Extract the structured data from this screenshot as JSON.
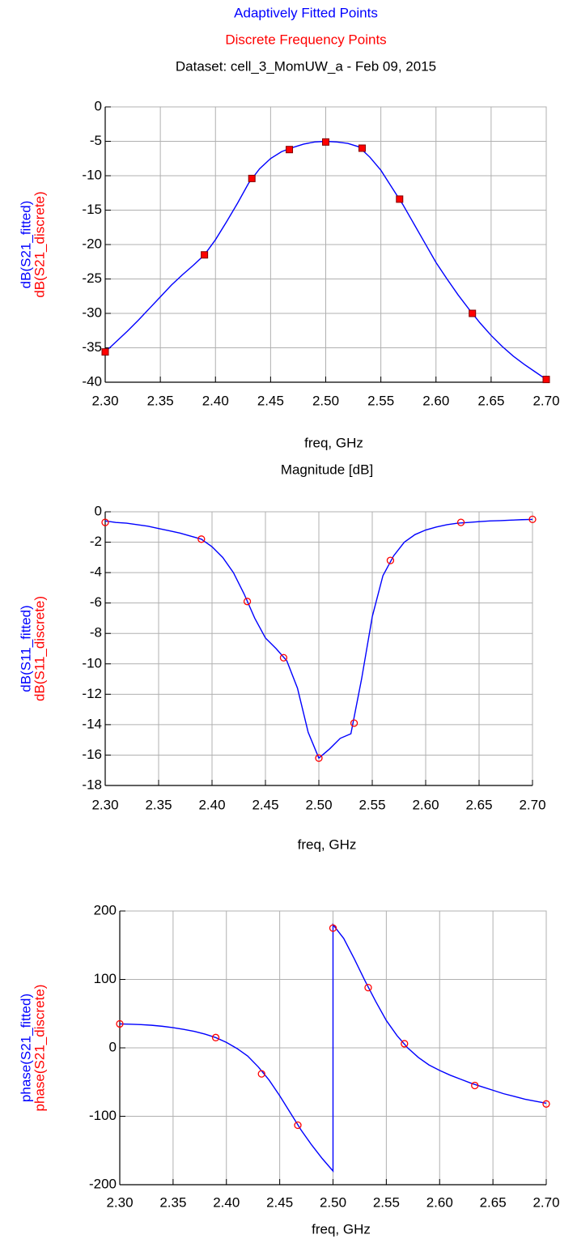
{
  "chart_data": [
    {
      "type": "line",
      "subtitle": "Dataset: cell_3_MomUW_a - Feb 09, 2015",
      "xlabel": "freq, GHz",
      "ylabels": [
        "dB(S21_fitted)",
        "dB(S21_discrete)"
      ],
      "xlim": [
        2.3,
        2.7
      ],
      "xticks": [
        {
          "value": 2.3,
          "label": "2.30"
        },
        {
          "value": 2.35,
          "label": "2.35"
        },
        {
          "value": 2.4,
          "label": "2.40"
        },
        {
          "value": 2.45,
          "label": "2.45"
        },
        {
          "value": 2.5,
          "label": "2.50"
        },
        {
          "value": 2.55,
          "label": "2.55"
        },
        {
          "value": 2.6,
          "label": "2.60"
        },
        {
          "value": 2.65,
          "label": "2.65"
        },
        {
          "value": 2.7,
          "label": "2.70"
        }
      ],
      "ylim": [
        -40,
        0
      ],
      "yticks": [
        0,
        -5,
        -10,
        -15,
        -20,
        -25,
        -30,
        -35,
        -40
      ],
      "grid": true,
      "series": [
        {
          "name": "Adaptively Fitted Points",
          "color": "#0000ff",
          "marker": "none",
          "x": [
            2.3,
            2.31,
            2.32,
            2.33,
            2.34,
            2.35,
            2.36,
            2.37,
            2.38,
            2.39,
            2.4,
            2.41,
            2.42,
            2.43,
            2.44,
            2.45,
            2.46,
            2.47,
            2.48,
            2.49,
            2.5,
            2.51,
            2.52,
            2.53,
            2.54,
            2.55,
            2.56,
            2.57,
            2.58,
            2.59,
            2.6,
            2.61,
            2.62,
            2.63,
            2.64,
            2.65,
            2.66,
            2.67,
            2.68,
            2.69,
            2.7
          ],
          "values": [
            -35.6,
            -34.1,
            -32.6,
            -31.0,
            -29.3,
            -27.6,
            -25.9,
            -24.4,
            -23.0,
            -21.5,
            -19.3,
            -16.7,
            -14.0,
            -11.1,
            -9.0,
            -7.5,
            -6.5,
            -5.9,
            -5.4,
            -5.1,
            -5.0,
            -5.1,
            -5.3,
            -5.8,
            -7.3,
            -9.2,
            -11.7,
            -14.2,
            -17.0,
            -19.8,
            -22.6,
            -25.0,
            -27.3,
            -29.4,
            -31.4,
            -33.2,
            -34.8,
            -36.2,
            -37.4,
            -38.5,
            -39.6
          ]
        },
        {
          "name": "Discrete Frequency Points",
          "color": "#ff0000",
          "marker": "square",
          "x": [
            2.3,
            2.39,
            2.433,
            2.467,
            2.5,
            2.533,
            2.567,
            2.633,
            2.7
          ],
          "values": [
            -35.6,
            -21.5,
            -10.4,
            -6.2,
            -5.1,
            -6.0,
            -13.4,
            -30.0,
            -39.6
          ]
        }
      ]
    },
    {
      "type": "line",
      "title": "Magnitude [dB]",
      "xlabel": "freq, GHz",
      "ylabels": [
        "dB(S11_fitted)",
        "dB(S11_discrete)"
      ],
      "xlim": [
        2.3,
        2.7
      ],
      "xticks": [
        {
          "value": 2.3,
          "label": "2.30"
        },
        {
          "value": 2.35,
          "label": "2.35"
        },
        {
          "value": 2.4,
          "label": "2.40"
        },
        {
          "value": 2.45,
          "label": "2.45"
        },
        {
          "value": 2.5,
          "label": "2.50"
        },
        {
          "value": 2.55,
          "label": "2.55"
        },
        {
          "value": 2.6,
          "label": "2.60"
        },
        {
          "value": 2.65,
          "label": "2.65"
        },
        {
          "value": 2.7,
          "label": "2.70"
        }
      ],
      "ylim": [
        -18,
        0
      ],
      "yticks": [
        0,
        -2,
        -4,
        -6,
        -8,
        -10,
        -12,
        -14,
        -16,
        -18
      ],
      "grid": true,
      "series": [
        {
          "color": "#0000ff",
          "marker": "none",
          "x": [
            2.3,
            2.31,
            2.32,
            2.33,
            2.34,
            2.35,
            2.36,
            2.37,
            2.38,
            2.39,
            2.4,
            2.41,
            2.42,
            2.43,
            2.44,
            2.45,
            2.46,
            2.47,
            2.48,
            2.49,
            2.5,
            2.51,
            2.52,
            2.53,
            2.54,
            2.55,
            2.56,
            2.57,
            2.58,
            2.59,
            2.6,
            2.61,
            2.62,
            2.63,
            2.64,
            2.65,
            2.66,
            2.67,
            2.68,
            2.69,
            2.7
          ],
          "values": [
            -0.6,
            -0.7,
            -0.75,
            -0.85,
            -0.95,
            -1.1,
            -1.25,
            -1.4,
            -1.6,
            -1.8,
            -2.3,
            -3.0,
            -4.0,
            -5.4,
            -7.0,
            -8.3,
            -9.0,
            -9.8,
            -11.6,
            -14.5,
            -16.2,
            -15.6,
            -14.9,
            -14.6,
            -11.0,
            -6.9,
            -4.2,
            -2.9,
            -2.0,
            -1.5,
            -1.2,
            -1.0,
            -0.85,
            -0.75,
            -0.7,
            -0.65,
            -0.6,
            -0.58,
            -0.55,
            -0.52,
            -0.5
          ]
        },
        {
          "color": "#ff0000",
          "marker": "circle",
          "x": [
            2.3,
            2.39,
            2.433,
            2.467,
            2.5,
            2.533,
            2.567,
            2.633,
            2.7
          ],
          "values": [
            -0.7,
            -1.8,
            -5.9,
            -9.6,
            -16.2,
            -13.9,
            -3.2,
            -0.7,
            -0.5
          ]
        }
      ]
    },
    {
      "type": "line",
      "xlabel": "freq, GHz",
      "ylabels": [
        "phase(S21_fitted)",
        "phase(S21_discrete)"
      ],
      "xlim": [
        2.3,
        2.7
      ],
      "xticks": [
        {
          "value": 2.3,
          "label": "2.30"
        },
        {
          "value": 2.35,
          "label": "2.35"
        },
        {
          "value": 2.4,
          "label": "2.40"
        },
        {
          "value": 2.45,
          "label": "2.45"
        },
        {
          "value": 2.5,
          "label": "2.50"
        },
        {
          "value": 2.55,
          "label": "2.55"
        },
        {
          "value": 2.6,
          "label": "2.60"
        },
        {
          "value": 2.65,
          "label": "2.65"
        },
        {
          "value": 2.7,
          "label": "2.70"
        }
      ],
      "ylim": [
        -200,
        200
      ],
      "yticks": [
        200,
        100,
        0,
        -100,
        -200
      ],
      "grid": true,
      "series": [
        {
          "color": "#0000ff",
          "marker": "none",
          "x": [
            2.3,
            2.31,
            2.32,
            2.33,
            2.34,
            2.35,
            2.36,
            2.37,
            2.38,
            2.39,
            2.4,
            2.41,
            2.42,
            2.43,
            2.44,
            2.45,
            2.46,
            2.47,
            2.48,
            2.49,
            2.5,
            2.5,
            2.51,
            2.52,
            2.53,
            2.54,
            2.55,
            2.56,
            2.57,
            2.58,
            2.59,
            2.6,
            2.61,
            2.62,
            2.63,
            2.64,
            2.65,
            2.66,
            2.67,
            2.68,
            2.69,
            2.7
          ],
          "values": [
            35,
            34.5,
            34,
            33,
            31.5,
            29.5,
            27,
            24,
            20,
            15,
            8,
            -1,
            -12,
            -28,
            -47,
            -70,
            -95,
            -120,
            -142,
            -162,
            -180,
            180,
            160,
            130,
            98,
            68,
            40,
            18,
            0,
            -14,
            -25,
            -33,
            -40,
            -46,
            -52,
            -57,
            -62,
            -67,
            -71,
            -75,
            -78,
            -81
          ]
        },
        {
          "color": "#ff0000",
          "marker": "circle",
          "x": [
            2.3,
            2.39,
            2.433,
            2.467,
            2.5,
            2.533,
            2.567,
            2.633,
            2.7
          ],
          "values": [
            35,
            15,
            -38,
            -113,
            175,
            88,
            6,
            -55,
            -82
          ]
        }
      ]
    }
  ]
}
